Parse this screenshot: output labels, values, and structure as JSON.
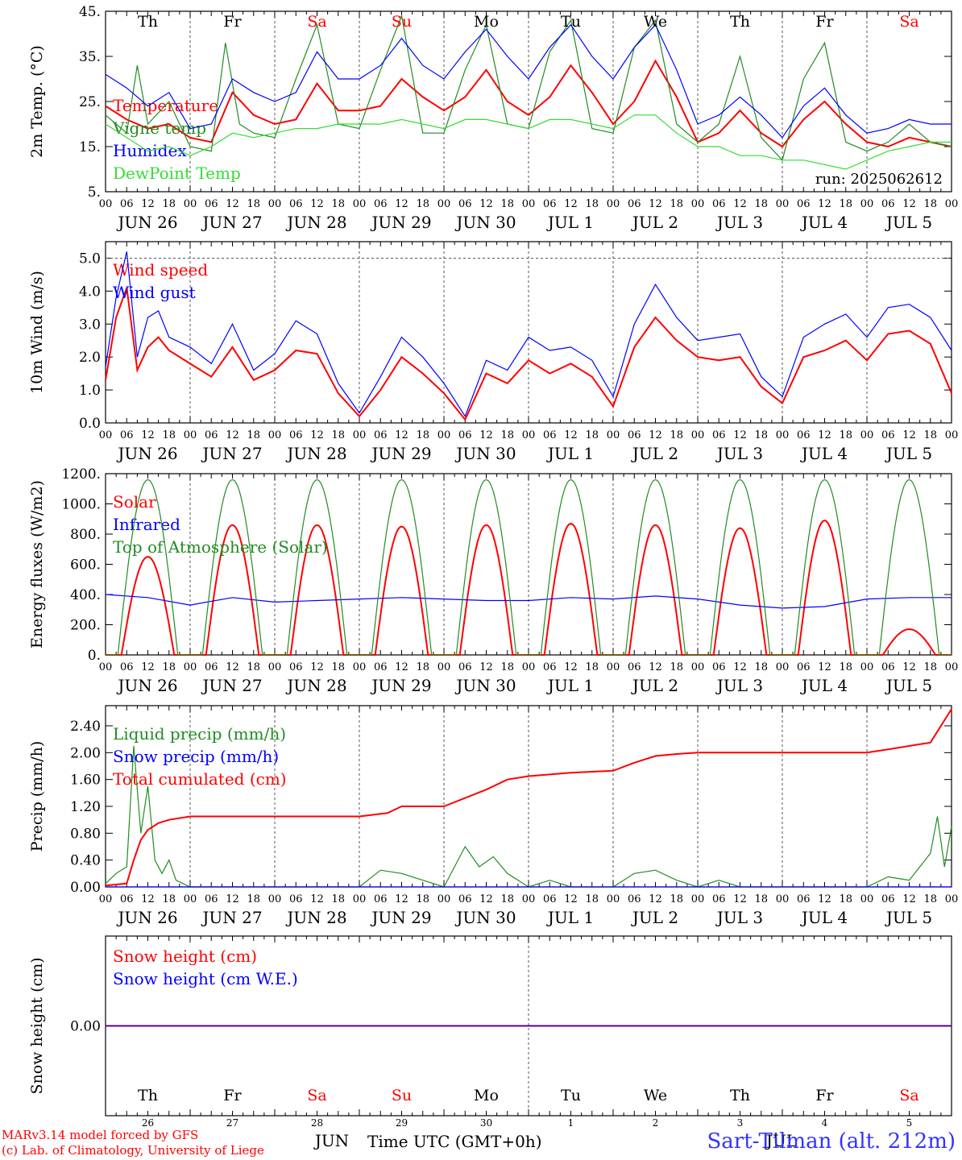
{
  "footer": {
    "credit_line1": "MARv3.14 model forced by GFS",
    "credit_line2": "(c) Lab. of Climatology, University of Liege",
    "station": "Sart-Tilman (alt. 212m)",
    "time_label": "Time UTC (GMT+0h)",
    "month_jun": "JUN",
    "month_jul": "JUL"
  },
  "weekdays": [
    "Th",
    "Fr",
    "Sa",
    "Su",
    "Mo",
    "Tu",
    "We",
    "Th",
    "Fr",
    "Sa"
  ],
  "weekday_colors": [
    "#000000",
    "#000000",
    "#ff0000",
    "#ff0000",
    "#000000",
    "#000000",
    "#000000",
    "#000000",
    "#000000",
    "#ff0000"
  ],
  "day_labels": [
    "JUN 26",
    "JUN 27",
    "JUN 28",
    "JUN 29",
    "JUN 30",
    "JUL  1",
    "JUL  2",
    "JUL  3",
    "JUL  4",
    "JUL  5"
  ],
  "day_numbers": [
    "26",
    "27",
    "28",
    "29",
    "30",
    "1",
    "2",
    "3",
    "4",
    "5"
  ],
  "hour_ticks": [
    "00",
    "06",
    "12",
    "18"
  ],
  "colors": {
    "red": "#ff0000",
    "green": "#228b22",
    "blue": "#0000ff",
    "lightgreen": "#33dd33"
  },
  "chart_data": [
    {
      "type": "line",
      "ylabel": "2m Temp. (°C)",
      "ylim": [
        5,
        45
      ],
      "yticks": [
        "5.",
        "15.",
        "25.",
        "35.",
        "45."
      ],
      "run_label": "run: 2025062612",
      "x_unit": "hours from Jun 26 00 UTC",
      "series": [
        {
          "name": "Temperature",
          "color": "#ff0000",
          "x": [
            0,
            6,
            12,
            18,
            24,
            30,
            36,
            42,
            48,
            54,
            60,
            66,
            72,
            78,
            84,
            90,
            96,
            102,
            108,
            114,
            120,
            126,
            132,
            138,
            144,
            150,
            156,
            162,
            168,
            174,
            180,
            186,
            192,
            198,
            204,
            210,
            216,
            222,
            228,
            234,
            240
          ],
          "y": [
            24,
            21,
            19,
            20,
            17,
            16,
            27,
            22,
            20,
            21,
            29,
            23,
            23,
            24,
            30,
            26,
            23,
            26,
            32,
            25,
            22,
            26,
            33,
            27,
            20,
            25,
            34,
            26,
            16,
            18,
            23,
            18,
            15,
            21,
            25,
            20,
            16,
            15,
            17,
            16,
            15
          ]
        },
        {
          "name": "Vigne temp",
          "color": "#228b22",
          "x": [
            0,
            6,
            9,
            12,
            18,
            24,
            30,
            34,
            38,
            42,
            48,
            54,
            60,
            66,
            72,
            78,
            84,
            90,
            96,
            102,
            108,
            114,
            120,
            126,
            132,
            138,
            144,
            150,
            156,
            162,
            168,
            174,
            180,
            186,
            192,
            198,
            204,
            210,
            216,
            222,
            228,
            234,
            240
          ],
          "y": [
            22,
            18,
            33,
            20,
            25,
            15,
            14,
            38,
            20,
            18,
            17,
            30,
            42,
            20,
            19,
            32,
            44,
            18,
            18,
            32,
            42,
            20,
            19,
            36,
            43,
            19,
            18,
            37,
            43,
            20,
            16,
            20,
            35,
            17,
            12,
            30,
            38,
            16,
            14,
            16,
            20,
            16,
            15
          ]
        },
        {
          "name": "Humidex",
          "color": "#0000ff",
          "x": [
            0,
            6,
            12,
            18,
            24,
            30,
            36,
            42,
            48,
            54,
            60,
            66,
            72,
            78,
            84,
            90,
            96,
            102,
            108,
            114,
            120,
            126,
            132,
            138,
            144,
            150,
            156,
            162,
            168,
            174,
            180,
            186,
            192,
            198,
            204,
            210,
            216,
            222,
            228,
            234,
            240
          ],
          "y": [
            31,
            28,
            24,
            27,
            19,
            20,
            30,
            27,
            25,
            27,
            36,
            30,
            30,
            33,
            39,
            33,
            30,
            36,
            41,
            35,
            30,
            37,
            42,
            35,
            30,
            37,
            42,
            32,
            20,
            22,
            26,
            22,
            17,
            24,
            28,
            22,
            18,
            19,
            21,
            20,
            20
          ]
        },
        {
          "name": "DewPoint Temp",
          "color": "#33dd33",
          "x": [
            0,
            6,
            12,
            18,
            24,
            30,
            36,
            42,
            48,
            54,
            60,
            66,
            72,
            78,
            84,
            90,
            96,
            102,
            108,
            114,
            120,
            126,
            132,
            138,
            144,
            150,
            156,
            162,
            168,
            174,
            180,
            186,
            192,
            198,
            204,
            210,
            216,
            222,
            228,
            234,
            240
          ],
          "y": [
            20,
            17,
            14,
            15,
            13,
            15,
            18,
            17,
            18,
            19,
            19,
            20,
            20,
            20,
            21,
            20,
            19,
            21,
            21,
            20,
            19,
            21,
            21,
            20,
            19,
            22,
            22,
            18,
            15,
            15,
            13,
            13,
            12,
            12,
            11,
            10,
            12,
            14,
            15,
            16,
            16
          ]
        }
      ]
    },
    {
      "type": "line",
      "ylabel": "10m Wind (m/s)",
      "ylim": [
        0,
        5.5
      ],
      "yticks": [
        "0.0",
        "1.0",
        "2.0",
        "3.0",
        "4.0",
        "5.0"
      ],
      "series": [
        {
          "name": "Wind speed",
          "color": "#ff0000",
          "x": [
            0,
            3,
            6,
            9,
            12,
            15,
            18,
            24,
            30,
            36,
            42,
            48,
            54,
            60,
            66,
            72,
            78,
            84,
            90,
            96,
            102,
            108,
            114,
            120,
            126,
            132,
            138,
            144,
            150,
            156,
            162,
            168,
            174,
            180,
            186,
            192,
            198,
            204,
            210,
            216,
            222,
            228,
            234,
            240
          ],
          "y": [
            1.3,
            3.2,
            4.1,
            1.6,
            2.3,
            2.6,
            2.2,
            1.8,
            1.4,
            2.3,
            1.3,
            1.6,
            2.2,
            2.1,
            0.9,
            0.2,
            1.0,
            2.0,
            1.5,
            0.9,
            0.1,
            1.5,
            1.2,
            1.9,
            1.5,
            1.8,
            1.4,
            0.5,
            2.3,
            3.2,
            2.5,
            2.0,
            1.9,
            2.0,
            1.1,
            0.6,
            2.0,
            2.2,
            2.5,
            1.9,
            2.7,
            2.8,
            2.4,
            0.9
          ]
        },
        {
          "name": "Wind gust",
          "color": "#0000ff",
          "x": [
            0,
            3,
            6,
            9,
            12,
            15,
            18,
            24,
            30,
            36,
            42,
            48,
            54,
            60,
            66,
            72,
            78,
            84,
            90,
            96,
            102,
            108,
            114,
            120,
            126,
            132,
            138,
            144,
            150,
            156,
            162,
            168,
            174,
            180,
            186,
            192,
            198,
            204,
            210,
            216,
            222,
            228,
            234,
            240
          ],
          "y": [
            1.7,
            3.8,
            5.2,
            2.0,
            3.2,
            3.4,
            2.6,
            2.3,
            1.8,
            3.0,
            1.6,
            2.1,
            3.1,
            2.7,
            1.2,
            0.3,
            1.4,
            2.6,
            2.0,
            1.2,
            0.2,
            1.9,
            1.6,
            2.6,
            2.2,
            2.3,
            1.9,
            0.8,
            3.0,
            4.2,
            3.2,
            2.5,
            2.6,
            2.7,
            1.4,
            0.8,
            2.6,
            3.0,
            3.3,
            2.6,
            3.5,
            3.6,
            3.2,
            2.2
          ]
        }
      ]
    },
    {
      "type": "line",
      "ylabel": "Energy fluxes (W/m2)",
      "ylim": [
        0,
        1200
      ],
      "yticks": [
        "0.",
        "200.",
        "400.",
        "600.",
        "800.",
        "1000.",
        "1200."
      ],
      "series": [
        {
          "name": "Solar",
          "color": "#ff0000",
          "daily_peak": [
            650,
            860,
            860,
            850,
            860,
            870,
            860,
            840,
            890,
            170
          ]
        },
        {
          "name": "Infrared",
          "color": "#0000ff",
          "x": [
            0,
            12,
            24,
            36,
            48,
            60,
            72,
            84,
            96,
            108,
            120,
            132,
            144,
            156,
            168,
            180,
            192,
            204,
            216,
            228,
            240
          ],
          "y": [
            400,
            380,
            330,
            380,
            350,
            360,
            370,
            380,
            370,
            360,
            360,
            380,
            370,
            390,
            370,
            330,
            310,
            320,
            370,
            380,
            380
          ]
        },
        {
          "name": "Top of Atmosphere (Solar)",
          "color": "#228b22",
          "daily_peak": [
            1160,
            1160,
            1160,
            1160,
            1160,
            1160,
            1160,
            1160,
            1160,
            1160
          ]
        }
      ]
    },
    {
      "type": "line",
      "ylabel": "Precip (mm/h)",
      "ylim": [
        0,
        2.7
      ],
      "yticks": [
        "0.00",
        "0.40",
        "0.80",
        "1.20",
        "1.60",
        "2.00",
        "2.40"
      ],
      "series": [
        {
          "name": "Liquid precip (mm/h)",
          "color": "#228b22",
          "x": [
            0,
            3,
            6,
            8,
            10,
            12,
            14,
            16,
            18,
            20,
            24,
            30,
            36,
            42,
            48,
            60,
            72,
            78,
            84,
            90,
            96,
            102,
            106,
            110,
            114,
            120,
            126,
            132,
            144,
            150,
            156,
            162,
            168,
            174,
            180,
            186,
            192,
            204,
            216,
            222,
            228,
            234,
            236,
            238,
            240
          ],
          "y": [
            0.05,
            0.2,
            0.3,
            2.1,
            0.8,
            1.5,
            0.4,
            0.2,
            0.4,
            0.1,
            0,
            0,
            0,
            0,
            0,
            0,
            0,
            0.25,
            0.2,
            0.1,
            0,
            0.6,
            0.3,
            0.45,
            0.2,
            0,
            0.1,
            0,
            0,
            0.2,
            0.25,
            0.1,
            0,
            0.1,
            0,
            0,
            0,
            0,
            0,
            0.15,
            0.1,
            0.5,
            1.05,
            0.3,
            0.9
          ]
        },
        {
          "name": "Snow precip (mm/h)",
          "color": "#0000ff",
          "x": [
            0,
            240
          ],
          "y": [
            0,
            0
          ]
        },
        {
          "name": "Total cumulated (cm)",
          "color": "#ff0000",
          "x": [
            0,
            6,
            8,
            10,
            12,
            15,
            18,
            24,
            48,
            72,
            80,
            84,
            90,
            96,
            108,
            114,
            120,
            132,
            144,
            150,
            156,
            162,
            168,
            180,
            192,
            204,
            216,
            222,
            228,
            234,
            240
          ],
          "y": [
            0.02,
            0.05,
            0.4,
            0.7,
            0.85,
            0.95,
            1.0,
            1.05,
            1.05,
            1.05,
            1.1,
            1.2,
            1.2,
            1.2,
            1.45,
            1.6,
            1.65,
            1.7,
            1.73,
            1.85,
            1.95,
            1.98,
            2.0,
            2.0,
            2.0,
            2.0,
            2.0,
            2.05,
            2.1,
            2.15,
            2.65
          ]
        }
      ]
    },
    {
      "type": "line",
      "ylabel": "Snow height (cm)",
      "ylim": [
        -1,
        1
      ],
      "yticks": [
        "0.00"
      ],
      "series": [
        {
          "name": "Snow height (cm)",
          "color": "#ff0000",
          "x": [
            0,
            240
          ],
          "y": [
            0,
            0
          ]
        },
        {
          "name": "Snow height (cm W.E.)",
          "color": "#0000ff",
          "x": [
            0,
            240
          ],
          "y": [
            0,
            0
          ]
        }
      ]
    }
  ]
}
